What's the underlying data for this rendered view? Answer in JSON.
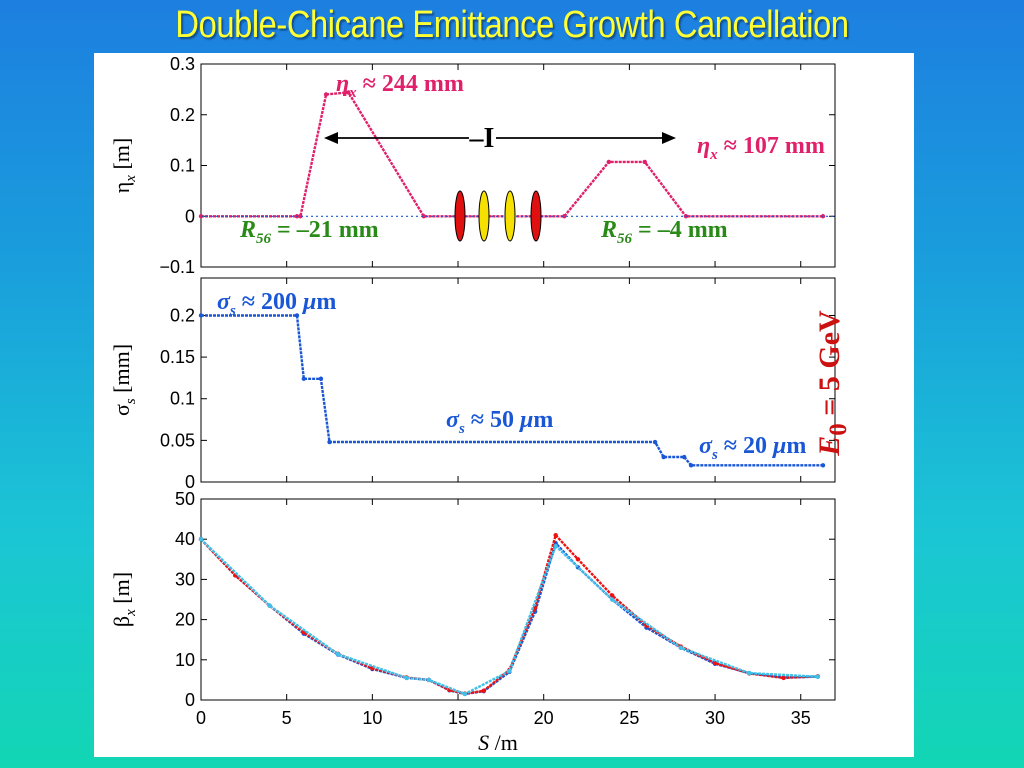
{
  "slide": {
    "title": "Double-Chicane Emittance Growth Cancellation",
    "energy": {
      "symbol": "E",
      "subscript": "0",
      "rest": " = 5 GeV",
      "color": "#cc1111"
    }
  },
  "colors": {
    "magenta": "#e0206a",
    "blue": "#1a57d6",
    "red": "#ee1111",
    "cyan": "#40c0e8",
    "green": "#2a8a18",
    "yellow": "#f5e000",
    "dipole_red": "#e01010"
  },
  "chart_data": [
    {
      "type": "line",
      "xlim": [
        0,
        37
      ],
      "ylim": [
        -0.1,
        0.3
      ],
      "yticks": [
        "−0.1",
        "0",
        "0.1",
        "0.2",
        "0.3"
      ],
      "ylabel": {
        "main": "η",
        "sub": "x",
        "unit": " [m]"
      },
      "series": [
        {
          "color": "magenta",
          "points": [
            [
              0,
              0
            ],
            [
              5.6,
              0
            ],
            [
              5.8,
              0
            ],
            [
              7.3,
              0.24
            ],
            [
              8.6,
              0.244
            ],
            [
              13.0,
              0
            ],
            [
              21.2,
              0
            ],
            [
              23.8,
              0.107
            ],
            [
              25.9,
              0.107
            ],
            [
              28.3,
              0
            ],
            [
              36.3,
              0
            ]
          ]
        },
        {
          "color": "blue",
          "dashed": true,
          "points": [
            [
              0,
              0
            ],
            [
              37,
              0
            ]
          ]
        }
      ],
      "annotations": {
        "eta1": {
          "var": "η",
          "sub": "x",
          "text": " ≈ 244 mm"
        },
        "eta2": {
          "var": "η",
          "sub": "x",
          "text": " ≈ 107 mm"
        },
        "r56a": {
          "var": "R",
          "sub": "56",
          "text": " = –21 mm"
        },
        "r56b": {
          "var": "R",
          "sub": "56",
          "text": " = –4 mm"
        },
        "minus_i": "–I"
      }
    },
    {
      "type": "line",
      "xlim": [
        0,
        37
      ],
      "ylim": [
        0,
        0.245
      ],
      "yticks": [
        "0",
        "0.05",
        "0.1",
        "0.15",
        "0.2"
      ],
      "ylabel": {
        "main": "σ",
        "sub": "s",
        "unit": " [mm]"
      },
      "series": [
        {
          "color": "blue",
          "points": [
            [
              0,
              0.2
            ],
            [
              5.6,
              0.2
            ],
            [
              6.0,
              0.124
            ],
            [
              7.0,
              0.124
            ],
            [
              7.5,
              0.048
            ],
            [
              26.5,
              0.048
            ],
            [
              27.0,
              0.03
            ],
            [
              28.2,
              0.03
            ],
            [
              28.6,
              0.02
            ],
            [
              36.3,
              0.02
            ]
          ]
        }
      ],
      "annotations": {
        "s1": {
          "var": "σ",
          "sub": "s",
          "text": " ≈ 200 ",
          "unit": "μ",
          "tail": "m"
        },
        "s2": {
          "var": "σ",
          "sub": "s",
          "text": " ≈ 50 ",
          "unit": "μ",
          "tail": "m"
        },
        "s3": {
          "var": "σ",
          "sub": "s",
          "text": " ≈ 20 ",
          "unit": "μ",
          "tail": "m"
        }
      }
    },
    {
      "type": "line",
      "xlim": [
        0,
        37
      ],
      "ylim": [
        0,
        50
      ],
      "yticks": [
        "0",
        "10",
        "20",
        "30",
        "40",
        "50"
      ],
      "xticks": [
        "0",
        "5",
        "10",
        "15",
        "20",
        "25",
        "30",
        "35"
      ],
      "xlabel": {
        "var": "S",
        "rest": " /m"
      },
      "ylabel": {
        "main": "β",
        "sub": "x",
        "unit": " [m]"
      },
      "series": [
        {
          "color": "blue",
          "points": [
            [
              0,
              40
            ],
            [
              2,
              31
            ],
            [
              4,
              23.5
            ],
            [
              6,
              16.5
            ],
            [
              8,
              11.3
            ],
            [
              10,
              7.7
            ],
            [
              12,
              5.5
            ],
            [
              13.3,
              5
            ],
            [
              14.5,
              2.4
            ],
            [
              15.4,
              1.5
            ],
            [
              16.5,
              2.2
            ],
            [
              18,
              7
            ],
            [
              19.5,
              22
            ],
            [
              20.7,
              39
            ],
            [
              22,
              33
            ],
            [
              24,
              25
            ],
            [
              26,
              18
            ],
            [
              28,
              13
            ],
            [
              30,
              9
            ],
            [
              32,
              6.7
            ],
            [
              34,
              5.6
            ],
            [
              36,
              5.8
            ]
          ]
        },
        {
          "color": "red",
          "points": [
            [
              0,
              40
            ],
            [
              2,
              31
            ],
            [
              4,
              23.5
            ],
            [
              6,
              16.8
            ],
            [
              8,
              11.5
            ],
            [
              10,
              7.9
            ],
            [
              12,
              5.6
            ],
            [
              13.3,
              5
            ],
            [
              14.5,
              2.5
            ],
            [
              15.4,
              1.6
            ],
            [
              16.5,
              2.3
            ],
            [
              18,
              7.5
            ],
            [
              19.5,
              23
            ],
            [
              20.7,
              41
            ],
            [
              22,
              35
            ],
            [
              24,
              26
            ],
            [
              26,
              18.5
            ],
            [
              28,
              13.3
            ],
            [
              30,
              9.2
            ],
            [
              32,
              6.6
            ],
            [
              34,
              5.5
            ],
            [
              36,
              5.9
            ]
          ]
        },
        {
          "color": "cyan",
          "points": [
            [
              0,
              40
            ],
            [
              4,
              23.5
            ],
            [
              8,
              11.4
            ],
            [
              12,
              5.5
            ],
            [
              13.3,
              5
            ],
            [
              15.4,
              1.5
            ],
            [
              18,
              7.2
            ],
            [
              20.7,
              38.3
            ],
            [
              24,
              25
            ],
            [
              28,
              13
            ],
            [
              32,
              6.7
            ],
            [
              36,
              5.8
            ]
          ]
        }
      ]
    }
  ]
}
